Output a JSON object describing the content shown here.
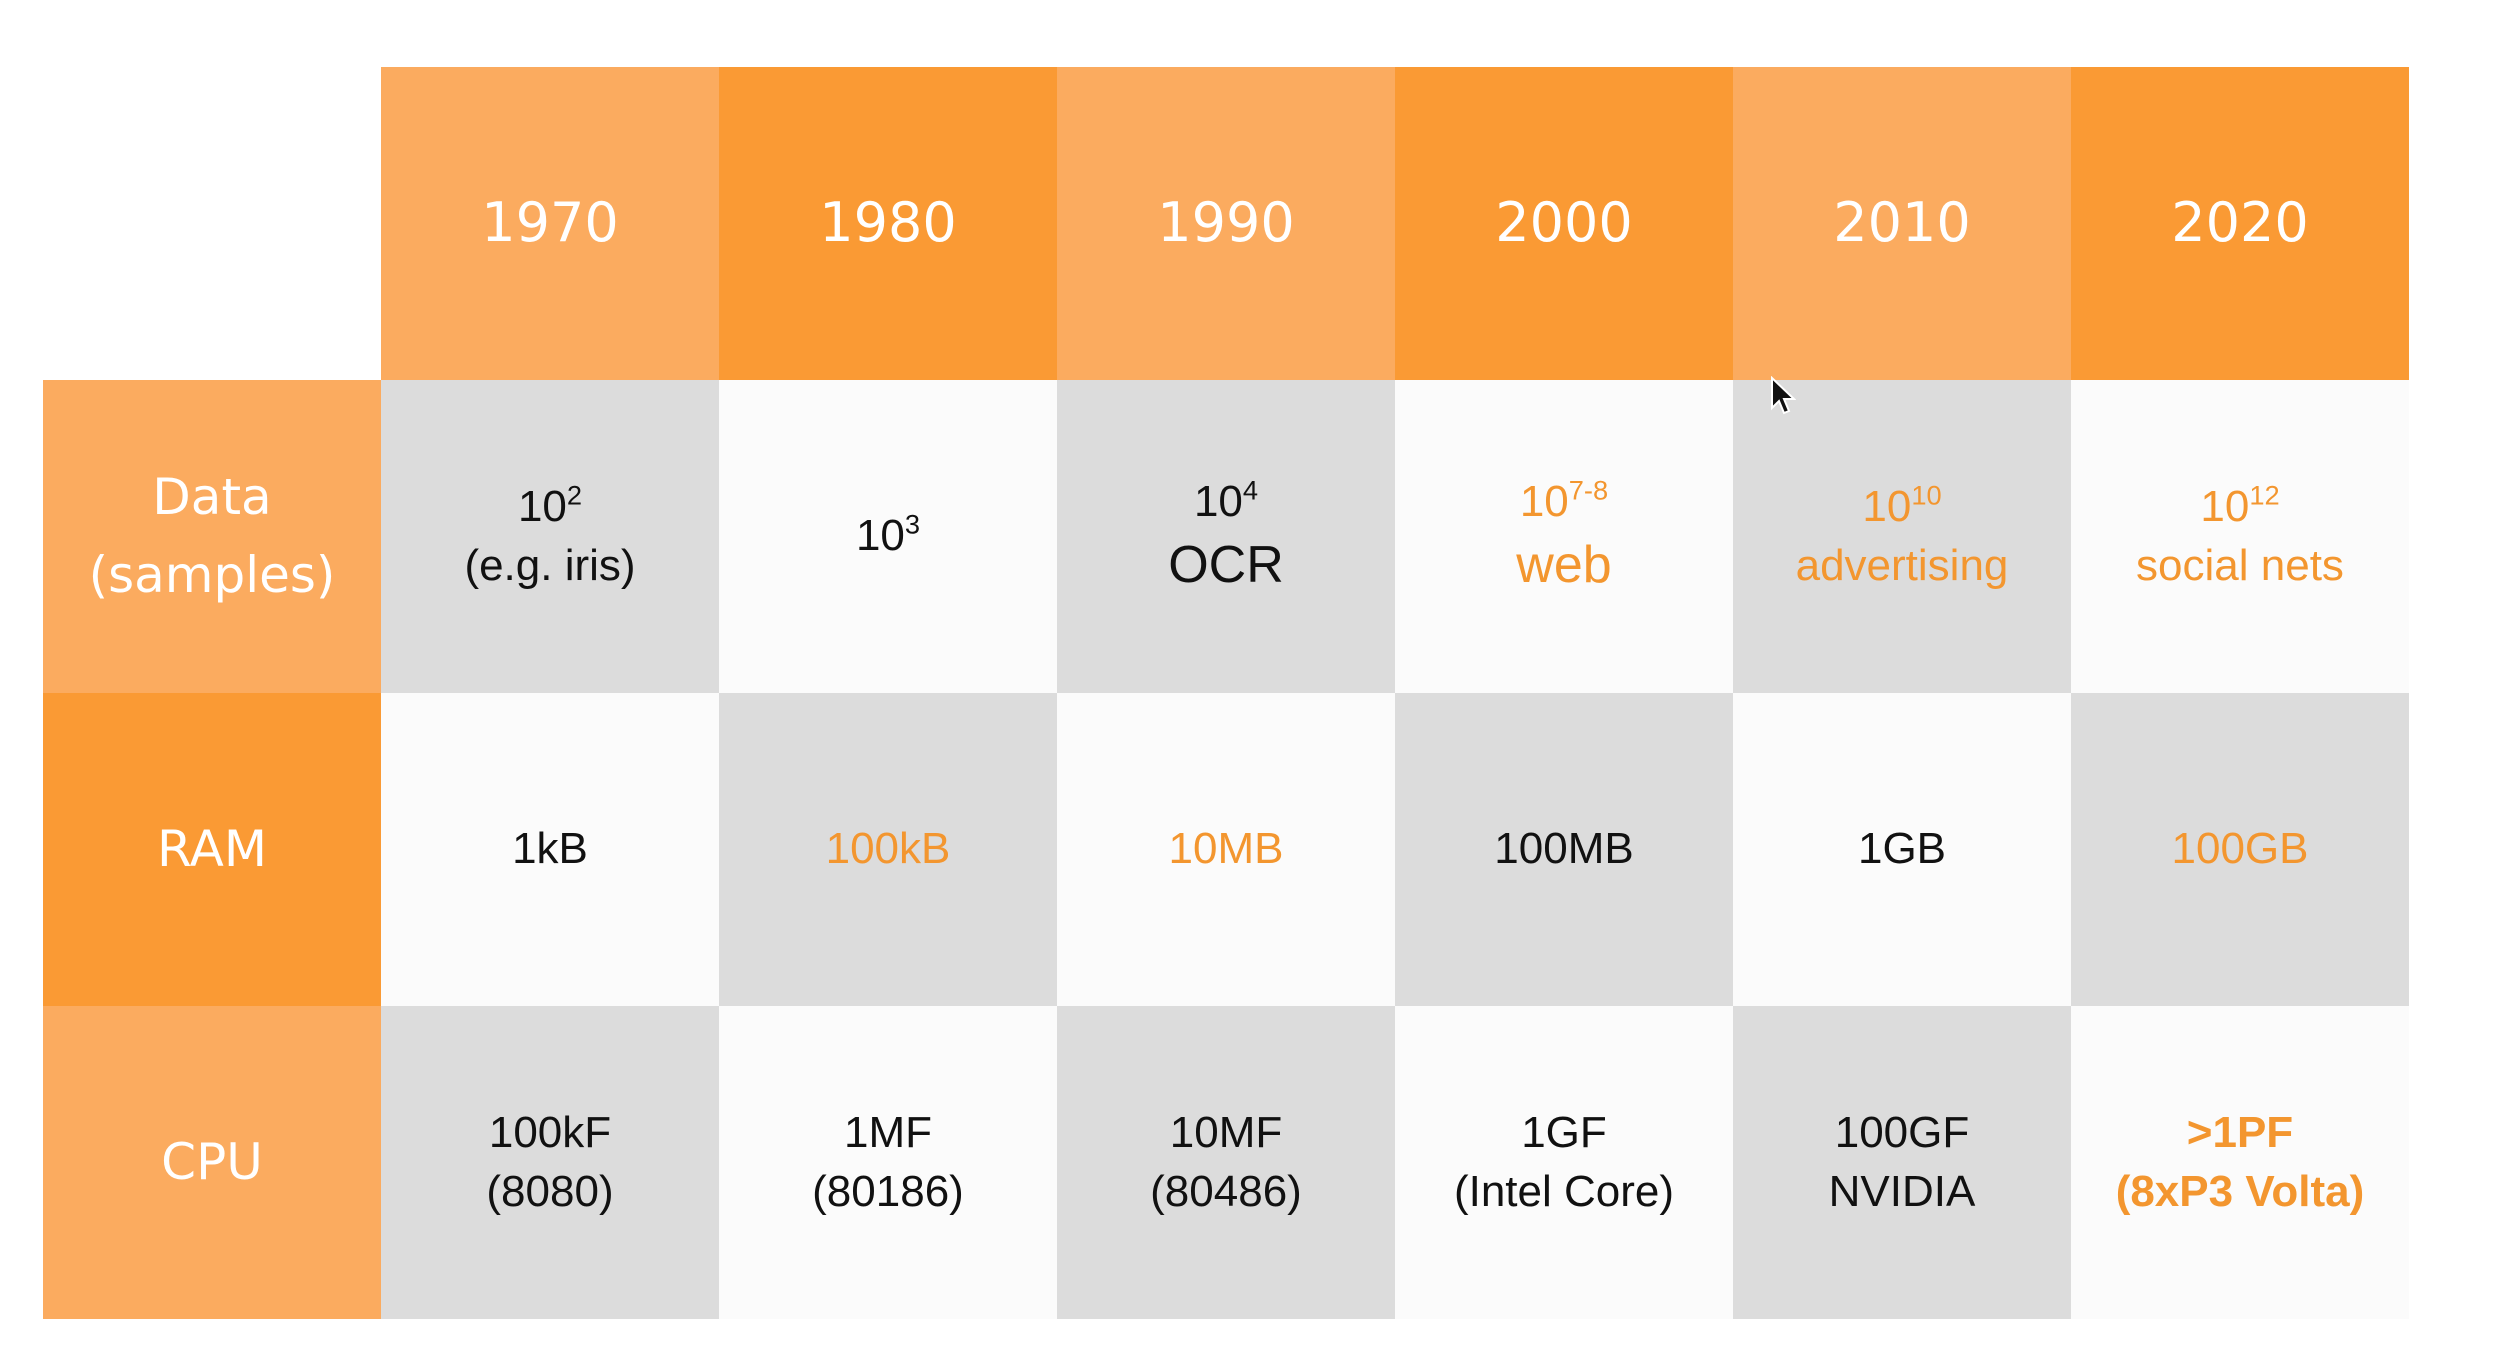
{
  "years": [
    "1970",
    "1980",
    "1990",
    "2000",
    "2010",
    "2020"
  ],
  "rows": {
    "data": {
      "label_line1": "Data",
      "label_line2": "(samples)",
      "cells": [
        {
          "base": "10",
          "exp": "2",
          "sub": "(e.g. iris)"
        },
        {
          "base": "10",
          "exp": "3",
          "sub": ""
        },
        {
          "base": "10",
          "exp": "4",
          "sub": "OCR"
        },
        {
          "base": "10",
          "exp": "7-8",
          "sub": "web"
        },
        {
          "base": "10",
          "exp": "10",
          "sub": "advertising"
        },
        {
          "base": "10",
          "exp": "12",
          "sub": "social nets"
        }
      ]
    },
    "ram": {
      "label": "RAM",
      "cells": [
        "1kB",
        "100kB",
        "10MB",
        "100MB",
        "1GB",
        "100GB"
      ]
    },
    "cpu": {
      "label": "CPU",
      "cells": [
        {
          "line1": "100kF",
          "line2": "(8080)"
        },
        {
          "line1": "1MF",
          "line2": "(80186)"
        },
        {
          "line1": "10MF",
          "line2": "(80486)"
        },
        {
          "line1": "1GF",
          "line2": "(Intel Core)"
        },
        {
          "line1": "100GF",
          "line2": "NVIDIA"
        },
        {
          "line1": ">1PF",
          "line2": "(8xP3 Volta)"
        }
      ]
    }
  },
  "colors": {
    "header_light": "#fbab5f",
    "header_dark": "#fa9a34",
    "cell_grey": "#dcdcdc",
    "cell_white": "#fbfbfb",
    "highlight_text": "#f3962f"
  },
  "icons": {
    "cursor": "mouse-pointer-icon"
  }
}
